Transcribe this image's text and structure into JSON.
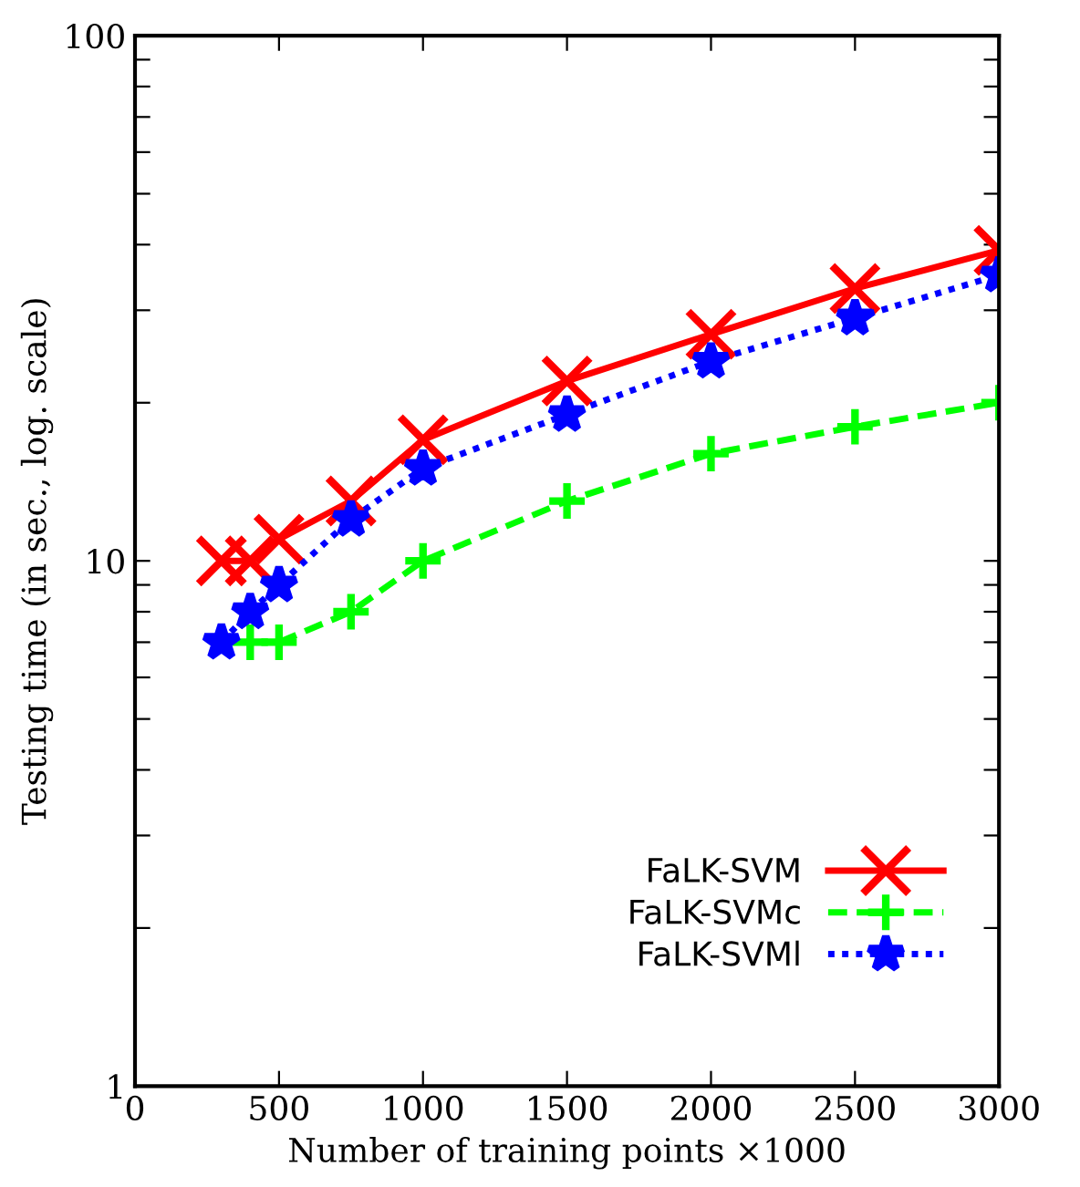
{
  "chart_data": {
    "type": "line",
    "xlabel": "Number of training points ×1000",
    "ylabel": "Testing time (in sec., log. scale)",
    "log": "y",
    "xlim": [
      0,
      3000
    ],
    "xticks": [
      0,
      500,
      1000,
      1500,
      2000,
      2500,
      3000
    ],
    "ylim": [
      1,
      100
    ],
    "yticks": [
      1,
      {
        "value": 2,
        "label": null
      },
      {
        "value": 3,
        "label": null
      },
      {
        "value": 4,
        "label": null
      },
      {
        "value": 5,
        "label": null
      },
      {
        "value": 6,
        "label": null
      },
      {
        "value": 7,
        "label": null
      },
      {
        "value": 8,
        "label": null
      },
      {
        "value": 9,
        "label": null
      },
      10,
      {
        "value": 20,
        "label": null
      },
      {
        "value": 30,
        "label": null
      },
      {
        "value": 40,
        "label": null
      },
      {
        "value": 50,
        "label": null
      },
      {
        "value": 60,
        "label": null
      },
      {
        "value": 70,
        "label": null
      },
      {
        "value": 80,
        "label": null
      },
      {
        "value": 90,
        "label": null
      },
      100
    ],
    "grid": false,
    "legend": "bottom right",
    "series": [
      {
        "name": "FaLK-SVM",
        "color": "#ff0000",
        "marker": "cross",
        "line_style": "solid",
        "x": [
          300,
          400,
          500,
          750,
          1000,
          1500,
          2000,
          2500,
          3000
        ],
        "values": [
          10,
          10,
          11,
          13,
          17,
          22,
          27,
          33,
          39
        ]
      },
      {
        "name": "FaLK-SVMc",
        "color": "#00ff00",
        "marker": "plus",
        "line_style": "dashed",
        "x": [
          400,
          500,
          750,
          1000,
          1500,
          2000,
          2500,
          3000
        ],
        "values": [
          7,
          7,
          8,
          10,
          13,
          16,
          18,
          20
        ]
      },
      {
        "name": "FaLK-SVMl",
        "color": "#0000ff",
        "marker": "star",
        "line_style": "dotted",
        "x": [
          300,
          400,
          500,
          750,
          1000,
          1500,
          2000,
          2500,
          3000
        ],
        "values": [
          7,
          8,
          9,
          12,
          15,
          19,
          24,
          29,
          35
        ]
      }
    ]
  }
}
